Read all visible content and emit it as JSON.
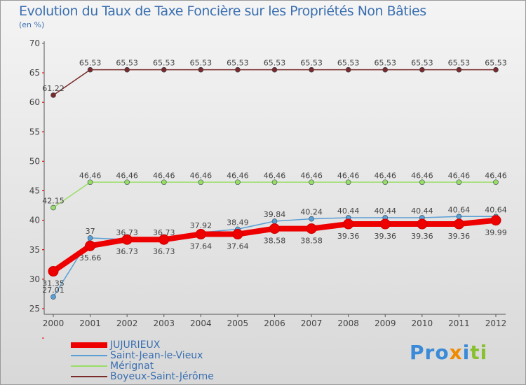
{
  "chart_data": {
    "type": "line",
    "title": "Evolution du Taux de Taxe Foncière sur les Propriétés Non Bâties",
    "ylabel": "(en %)",
    "x": [
      "2000",
      "2001",
      "2002",
      "2003",
      "2004",
      "2005",
      "2006",
      "2007",
      "2008",
      "2009",
      "2010",
      "2011",
      "2012"
    ],
    "yticks": [
      "25",
      "30",
      "35",
      "40",
      "45",
      "50",
      "55",
      "60",
      "65",
      "70"
    ],
    "ylim": [
      25,
      70
    ],
    "series": [
      {
        "name": "JUJURIEUX",
        "color": "#ee0000",
        "values": [
          31.35,
          35.66,
          36.73,
          36.73,
          37.64,
          37.64,
          38.58,
          38.58,
          39.36,
          39.36,
          39.36,
          39.36,
          39.99
        ]
      },
      {
        "name": "Saint-Jean-le-Vieux",
        "color": "#5a9fd4",
        "values": [
          27.01,
          37,
          36.73,
          36.73,
          37.92,
          38.49,
          39.84,
          40.24,
          40.44,
          40.44,
          40.44,
          40.64,
          40.64
        ]
      },
      {
        "name": "Mérignat",
        "color": "#99dd66",
        "values": [
          42.15,
          46.46,
          46.46,
          46.46,
          46.46,
          46.46,
          46.46,
          46.46,
          46.46,
          46.46,
          46.46,
          46.46,
          46.46
        ]
      },
      {
        "name": "Boyeux-Saint-Jérôme",
        "color": "#7a2a2a",
        "values": [
          61.22,
          65.53,
          65.53,
          65.53,
          65.53,
          65.53,
          65.53,
          65.53,
          65.53,
          65.53,
          65.53,
          65.53,
          65.53
        ]
      }
    ]
  },
  "logo": "Proxiti"
}
